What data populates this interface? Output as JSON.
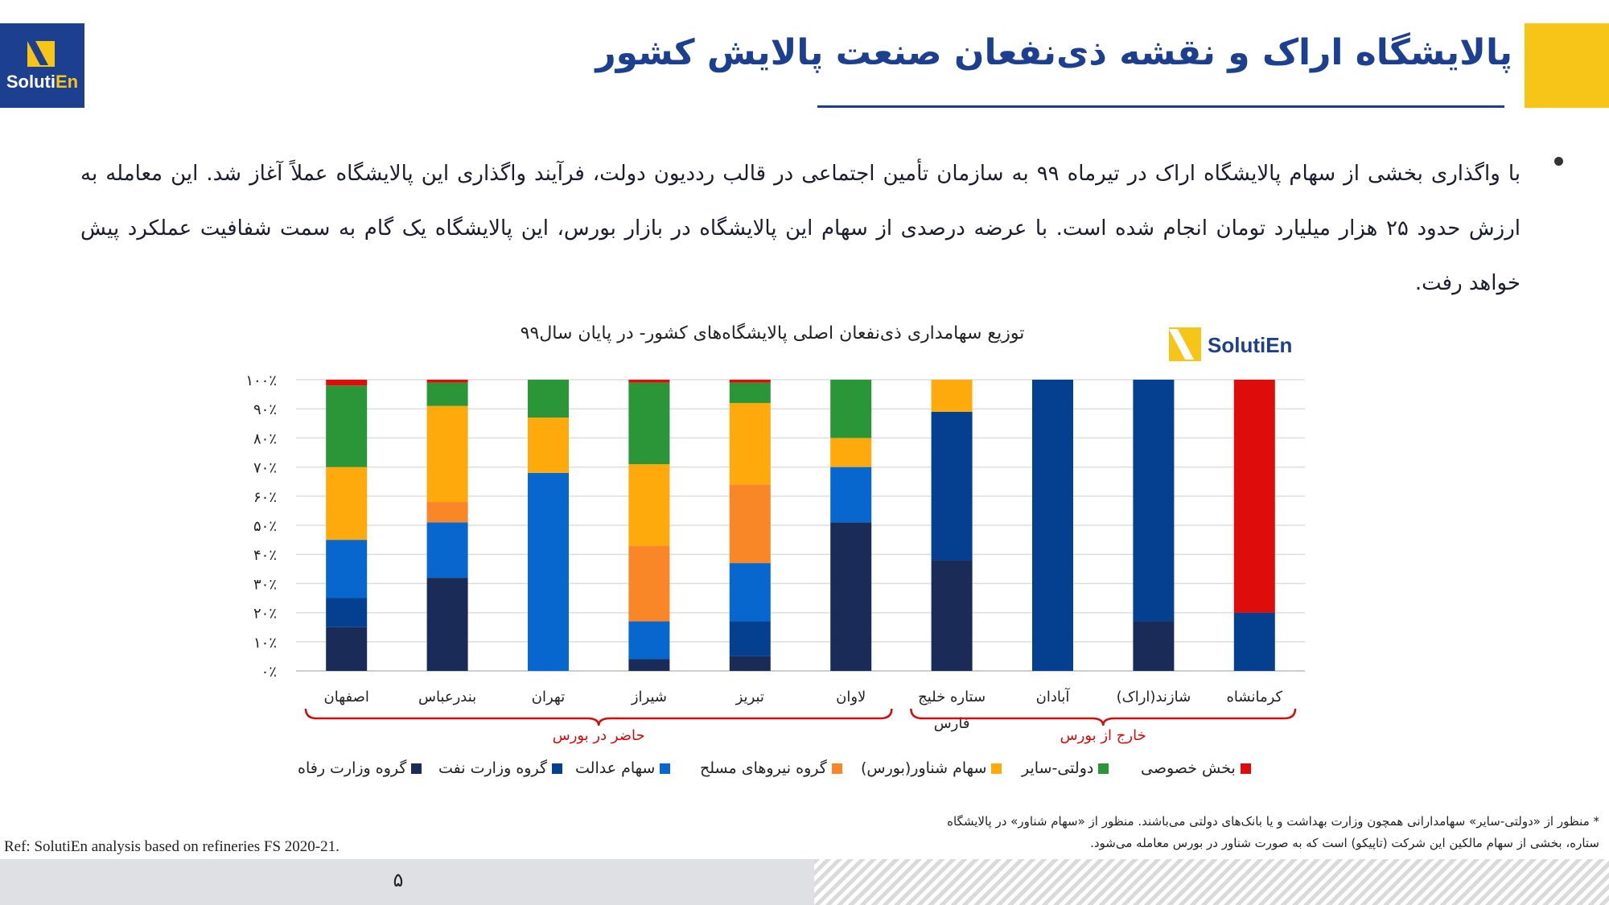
{
  "logo": {
    "brand_a": "Soluti",
    "brand_b": "En"
  },
  "title": "پالایشگاه اراک و نقشه ذی‌نفعان صنعت پالایش کشور",
  "bullet": "با واگذاری بخشی از سهام پالایشگاه اراک در تیرماه ۹۹ به سازمان تأمین اجتماعی در قالب رددیون دولت، فرآیند واگذاری این پالایشگاه عملاً آغاز شد. این معامله به ارزش حدود ۲۵ هزار میلیارد تومان انجام شده است. با عرضه درصدی از سهام این پالایشگاه در بازار بورس، این پالایشگاه یک گام به سمت شفافیت عملکرد پیش خواهد رفت.",
  "chart_brand": "SolutiEn",
  "chart_data": {
    "type": "bar",
    "stacked": true,
    "title": "توزیع سهامداری ذی‌نفعان اصلی پالایشگاه‌های کشور- در پایان سال۹۹",
    "categories": [
      "اصفهان",
      "بندرعباس",
      "تهران",
      "شیراز",
      "تبریز",
      "لاوان",
      "ستاره خلیج فارس",
      "آبادان",
      "شازند(اراک)",
      "کرمانشاه"
    ],
    "category_lines": [
      [
        "اصفهان"
      ],
      [
        "بندرعباس"
      ],
      [
        "تهران"
      ],
      [
        "شیراز"
      ],
      [
        "تبریز"
      ],
      [
        "لاوان"
      ],
      [
        "ستاره خلیج",
        "فارس"
      ],
      [
        "آبادان"
      ],
      [
        "شازند(اراک)"
      ],
      [
        "کرمانشاه"
      ]
    ],
    "y_ticks": [
      "۰٪",
      "۱۰٪",
      "۲۰٪",
      "۳۰٪",
      "۴۰٪",
      "۵۰٪",
      "۶۰٪",
      "۷۰٪",
      "۸۰٪",
      "۹۰٪",
      "۱۰۰٪"
    ],
    "ylim": [
      0,
      100
    ],
    "grid": true,
    "legend_position": "bottom",
    "series": [
      {
        "name": "گروه وزارت رفاه",
        "color": "#1b2b57",
        "values": [
          15,
          32,
          0,
          4,
          5,
          51,
          38,
          0,
          17,
          0
        ]
      },
      {
        "name": "گروه وزارت نفت",
        "color": "#053f8f",
        "values": [
          10,
          0,
          0,
          0,
          12,
          0,
          51,
          100,
          83,
          20
        ]
      },
      {
        "name": "سهام عدالت",
        "color": "#0866cf",
        "values": [
          20,
          19,
          68,
          13,
          20,
          19,
          0,
          0,
          0,
          0
        ]
      },
      {
        "name": "گروه نیروهای مسلح",
        "color": "#fa8727",
        "values": [
          0,
          7,
          0,
          26,
          27,
          0,
          0,
          0,
          0,
          0
        ]
      },
      {
        "name": "سهام شناور(بورس)",
        "color": "#fea90c",
        "values": [
          25,
          33,
          19,
          28,
          28,
          10,
          11,
          0,
          0,
          0
        ]
      },
      {
        "name": "دولتی-سایر",
        "color": "#2b9638",
        "values": [
          28,
          8,
          13,
          28,
          7,
          20,
          0,
          0,
          0,
          0
        ]
      },
      {
        "name": "بخش خصوصی",
        "color": "#df0c0c",
        "values": [
          2,
          1,
          0,
          1,
          1,
          0,
          0,
          0,
          0,
          80
        ]
      }
    ],
    "groups": [
      {
        "label": "حاضر در بورس",
        "from": 0,
        "to": 5
      },
      {
        "label": "خارج از بورس",
        "from": 6,
        "to": 9
      }
    ],
    "group_color": "#d10d0d"
  },
  "footnote": "* منظور از «دولتی-سایر» سهامدارانی همچون وزارت بهداشت و یا بانک‌های دولتی می‌باشند. منظور از «سهام شناور» در پالایشگاه ستاره، بخشی از سهام مالکین این شرکت (تاپیکو) است که به صورت شناور در بورس معامله می‌شود.",
  "reference": "Ref: SolutiEn analysis based on refineries FS  2020-21.",
  "page_number": "۵"
}
